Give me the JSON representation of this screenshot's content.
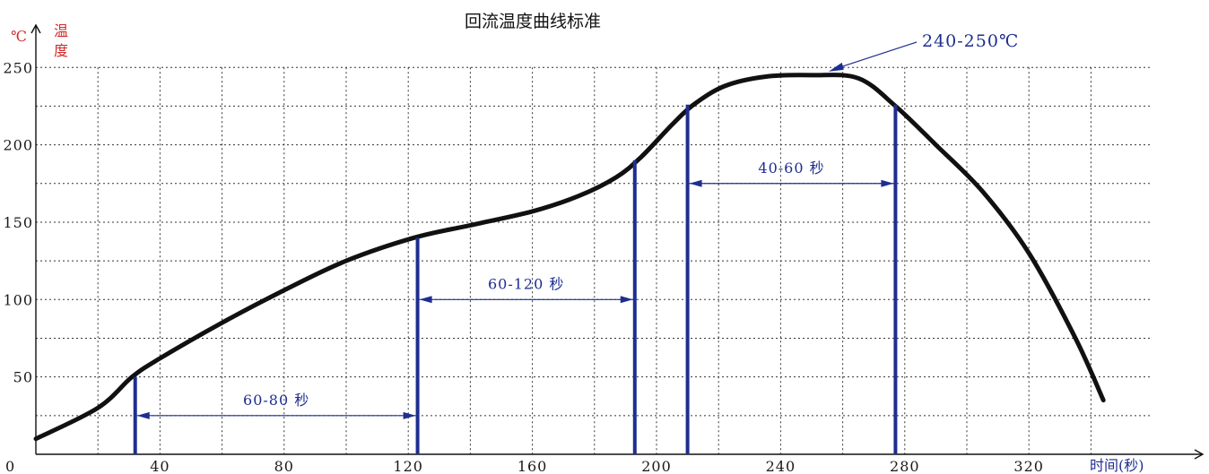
{
  "chart_data": {
    "type": "line",
    "title": "回流温度曲线标准",
    "ylabel_unit": "℃",
    "ylabel_chars": [
      "温",
      "度"
    ],
    "xlabel": "时间(秒)",
    "xlim": [
      0,
      360
    ],
    "ylim": [
      0,
      250
    ],
    "x_ticks": [
      {
        "value": 0,
        "label": "0"
      },
      {
        "value": 40,
        "label": "40"
      },
      {
        "value": 80,
        "label": "80"
      },
      {
        "value": 120,
        "label": "120"
      },
      {
        "value": 160,
        "label": "160"
      },
      {
        "value": 200,
        "label": "200"
      },
      {
        "value": 240,
        "label": "240"
      },
      {
        "value": 280,
        "label": "280"
      },
      {
        "value": 320,
        "label": "320"
      }
    ],
    "y_ticks": [
      {
        "value": 50,
        "label": "50"
      },
      {
        "value": 100,
        "label": "100"
      },
      {
        "value": 150,
        "label": "150"
      },
      {
        "value": 200,
        "label": "200"
      },
      {
        "value": 250,
        "label": "250"
      }
    ],
    "grid": true,
    "series": [
      {
        "x": [
          0,
          20,
          31,
          40,
          60,
          80,
          100,
          122,
          140,
          160,
          175,
          187,
          195,
          205,
          212,
          222,
          235,
          250,
          265,
          277,
          290,
          305,
          320,
          335,
          344
        ],
        "y": [
          10,
          30,
          50,
          62,
          85,
          106,
          125,
          140,
          148,
          157,
          167,
          179,
          192,
          213,
          226,
          238,
          244,
          245,
          243,
          225,
          200,
          170,
          130,
          75,
          35
        ]
      }
    ],
    "markers": [
      {
        "x": 32,
        "y": 50
      },
      {
        "x": 123,
        "y": 140
      },
      {
        "x": 193,
        "y": 190
      },
      {
        "x": 210,
        "y": 226
      },
      {
        "x": 277,
        "y": 226
      }
    ],
    "dimensions": [
      {
        "x1": 32,
        "x2": 123,
        "y": 25,
        "label": "60-80 秒"
      },
      {
        "x1": 123,
        "x2": 193,
        "y": 100,
        "label": "60-120 秒"
      },
      {
        "x1": 210,
        "x2": 277,
        "y": 175,
        "label": "40-60 秒"
      }
    ],
    "peak_annotation": {
      "label": "240-250℃",
      "x": 256,
      "y": 245
    }
  }
}
